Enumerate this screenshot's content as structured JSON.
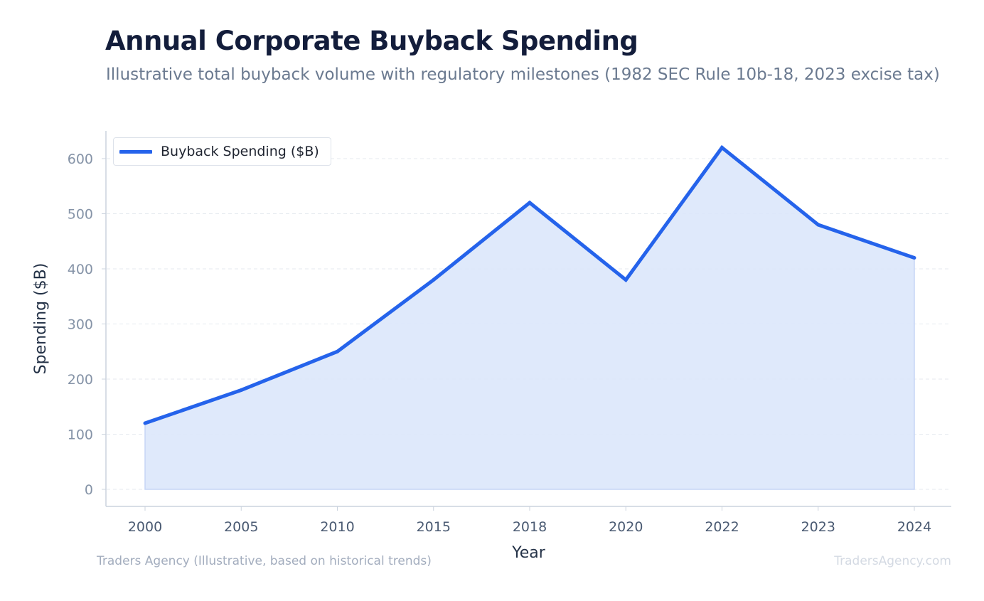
{
  "title": "Annual Corporate Buyback Spending",
  "subtitle": "Illustrative total buyback volume with regulatory milestones (1982 SEC Rule 10b-18, 2023 excise tax)",
  "source": "Traders Agency (Illustrative, based on historical trends)",
  "watermark": "TradersAgency.com",
  "colors": {
    "line": "#2563eb",
    "fill": "#dce7fb",
    "grid": "#e5e9ef",
    "axis": "#cbd3de",
    "tick_text": "#8593a7",
    "x_tick_text": "#4a5a72",
    "axis_label": "#243247"
  },
  "chart_data": {
    "type": "area",
    "title": "Annual Corporate Buyback Spending",
    "subtitle": "Illustrative total buyback volume with regulatory milestones (1982 SEC Rule 10b-18, 2023 excise tax)",
    "xlabel": "Year",
    "ylabel": "Spending ($B)",
    "categories": [
      "2000",
      "2005",
      "2010",
      "2015",
      "2018",
      "2020",
      "2022",
      "2023",
      "2024"
    ],
    "series": [
      {
        "name": "Buyback Spending ($B)",
        "values": [
          120,
          180,
          250,
          380,
          520,
          380,
          620,
          480,
          420
        ]
      }
    ],
    "ylim": [
      0,
      650
    ],
    "yticks": [
      0,
      100,
      200,
      300,
      400,
      500,
      600
    ],
    "grid": true,
    "legend": "top-left"
  }
}
